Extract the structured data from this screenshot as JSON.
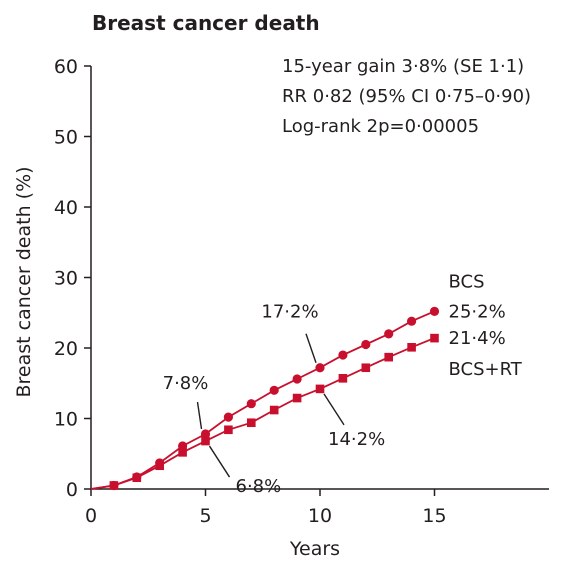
{
  "chart_data": {
    "type": "line",
    "title": "Breast cancer death",
    "xlabel": "Years",
    "ylabel": "Breast cancer death (%)",
    "xlim": [
      0,
      20
    ],
    "ylim": [
      0,
      60
    ],
    "xticks": [
      "0",
      "5",
      "10",
      "15"
    ],
    "yticks": [
      "0",
      "10",
      "20",
      "30",
      "40",
      "50",
      "60"
    ],
    "stats": [
      "15-year gain 3·8% (SE 1·1)",
      "RR 0·82 (95% CI 0·75–0·90)",
      "Log-rank 2p=0·00005"
    ],
    "series": [
      {
        "name": "BCS",
        "marker": "circle",
        "color": "#c8102e",
        "x": [
          0,
          1,
          2,
          3,
          4,
          5,
          6,
          7,
          8,
          9,
          10,
          11,
          12,
          13,
          14,
          15
        ],
        "values": [
          0,
          0.5,
          1.7,
          3.7,
          6.1,
          7.8,
          10.2,
          12.1,
          14.0,
          15.6,
          17.2,
          19.0,
          20.5,
          22.0,
          23.8,
          25.2
        ]
      },
      {
        "name": "BCS+RT",
        "marker": "square",
        "color": "#c8102e",
        "x": [
          0,
          1,
          2,
          3,
          4,
          5,
          6,
          7,
          8,
          9,
          10,
          11,
          12,
          13,
          14,
          15
        ],
        "values": [
          0,
          0.5,
          1.6,
          3.3,
          5.2,
          6.8,
          8.4,
          9.4,
          11.2,
          12.9,
          14.2,
          15.7,
          17.2,
          18.7,
          20.1,
          21.4
        ]
      }
    ],
    "annotations": [
      {
        "text": "7·8%",
        "series": "BCS",
        "x": 5,
        "y": 7.8
      },
      {
        "text": "6·8%",
        "series": "BCS+RT",
        "x": 5,
        "y": 6.8
      },
      {
        "text": "17·2%",
        "series": "BCS",
        "x": 10,
        "y": 17.2
      },
      {
        "text": "14·2%",
        "series": "BCS+RT",
        "x": 10,
        "y": 14.2
      },
      {
        "text": "25·2%",
        "series": "BCS",
        "x": 15,
        "y": 25.2
      },
      {
        "text": "21·4%",
        "series": "BCS+RT",
        "x": 15,
        "y": 21.4
      }
    ]
  }
}
